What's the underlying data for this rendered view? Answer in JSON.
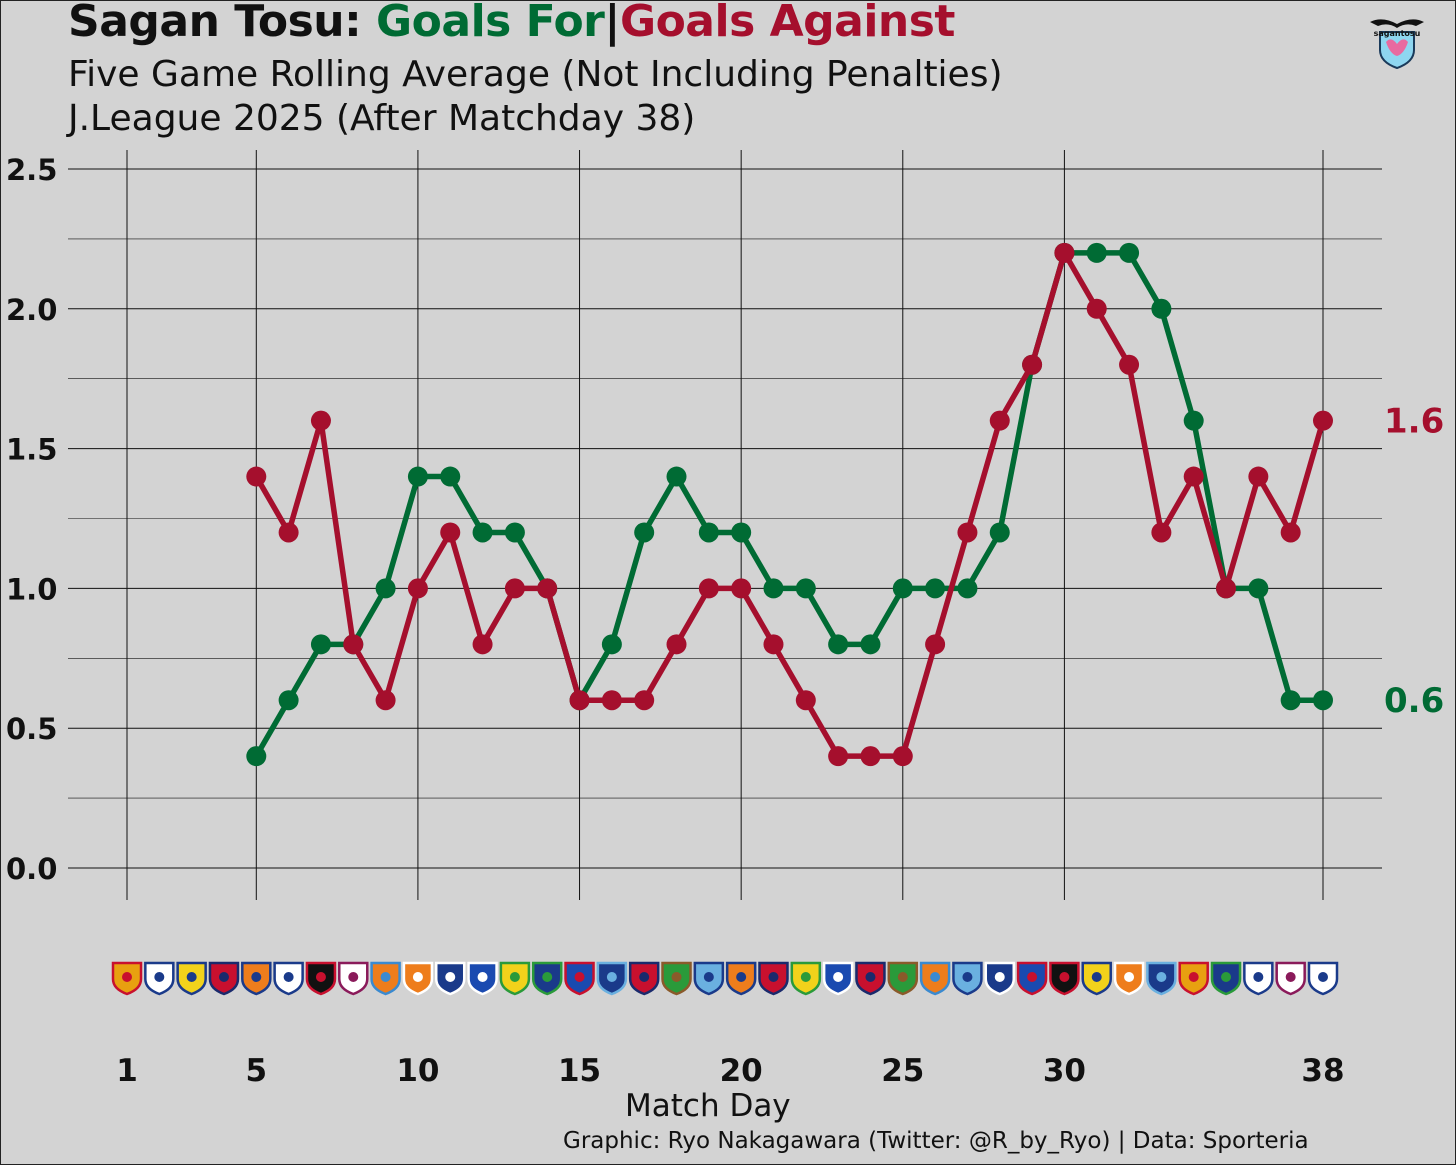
{
  "header": {
    "team": "Sagan Tosu:",
    "goals_for": "Goals For",
    "separator": "|",
    "goals_against": "Goals Against",
    "subtitle1": "Five Game Rolling Average (Not Including Penalties)",
    "subtitle2": "J.League 2025 (After Matchday 38)",
    "logo_text": "sagantosu"
  },
  "footer": {
    "xlabel": "Match Day",
    "caption": "Graphic: Ryo Nakagawara (Twitter: @R_by_Ryo) | Data: Sporteria"
  },
  "colors": {
    "goals_for": "#006b34",
    "goals_against": "#a50f2d",
    "background": "#d3d3d3",
    "grid": "#111111"
  },
  "chart_data": {
    "type": "line",
    "title": "Sagan Tosu: Goals For | Goals Against",
    "xlabel": "Match Day",
    "ylabel": "",
    "xlim": [
      1,
      38
    ],
    "ylim": [
      0,
      2.5
    ],
    "xticks": [
      1,
      5,
      10,
      15,
      20,
      25,
      30,
      38
    ],
    "yticks": [
      "0.0",
      "0.5",
      "1.0",
      "1.5",
      "2.0",
      "2.5"
    ],
    "grid": true,
    "legend": "title",
    "x": [
      5,
      6,
      7,
      8,
      9,
      10,
      11,
      12,
      13,
      14,
      15,
      16,
      17,
      18,
      19,
      20,
      21,
      22,
      23,
      24,
      25,
      26,
      27,
      28,
      29,
      30,
      31,
      32,
      33,
      34,
      35,
      36,
      37,
      38
    ],
    "series": [
      {
        "name": "Goals For",
        "color": "#006b34",
        "values": [
          0.4,
          0.6,
          0.8,
          0.8,
          1.0,
          1.4,
          1.4,
          1.2,
          1.2,
          1.0,
          0.6,
          0.8,
          1.2,
          1.4,
          1.2,
          1.2,
          1.0,
          1.0,
          0.8,
          0.8,
          1.0,
          1.0,
          1.0,
          1.2,
          1.8,
          2.2,
          2.2,
          2.2,
          2.0,
          1.6,
          1.0,
          1.0,
          0.6,
          0.6
        ],
        "end_label": "0.6"
      },
      {
        "name": "Goals Against",
        "color": "#a50f2d",
        "values": [
          1.4,
          1.2,
          1.6,
          0.8,
          0.6,
          1.0,
          1.2,
          0.8,
          1.0,
          1.0,
          0.6,
          0.6,
          0.6,
          0.8,
          1.0,
          1.0,
          0.8,
          0.6,
          0.4,
          0.4,
          0.4,
          0.8,
          1.2,
          1.6,
          1.8,
          2.2,
          2.0,
          1.8,
          1.2,
          1.4,
          1.0,
          1.4,
          1.2,
          1.6
        ],
        "end_label": "1.6"
      }
    ],
    "opponent_badges": [
      {
        "colors": [
          "#e8a010",
          "#c8102e"
        ]
      },
      {
        "colors": [
          "#ffffff",
          "#1a3a8a"
        ]
      },
      {
        "colors": [
          "#f2d21b",
          "#1a3a8a"
        ]
      },
      {
        "colors": [
          "#c8102e",
          "#1a2a6c"
        ]
      },
      {
        "colors": [
          "#ee7d1c",
          "#1a3a8a"
        ]
      },
      {
        "colors": [
          "#ffffff",
          "#1a3a8a"
        ]
      },
      {
        "colors": [
          "#111111",
          "#c8102e"
        ]
      },
      {
        "colors": [
          "#ffffff",
          "#8a1a5a"
        ]
      },
      {
        "colors": [
          "#ee7d1c",
          "#3a8ad0"
        ]
      },
      {
        "colors": [
          "#ee7d1c",
          "#ffffff"
        ]
      },
      {
        "colors": [
          "#1a3a8a",
          "#ffffff"
        ]
      },
      {
        "colors": [
          "#1a4ab0",
          "#ffffff"
        ]
      },
      {
        "colors": [
          "#f2d21b",
          "#2a9a3a"
        ]
      },
      {
        "colors": [
          "#1a3a8a",
          "#2a9a3a"
        ]
      },
      {
        "colors": [
          "#1a4ab0",
          "#c8102e"
        ]
      },
      {
        "colors": [
          "#1a3a8a",
          "#6ab0e0"
        ]
      },
      {
        "colors": [
          "#c8102e",
          "#1a2a6c"
        ]
      },
      {
        "colors": [
          "#2a9a3a",
          "#8a5a2a"
        ]
      },
      {
        "colors": [
          "#6ab0e0",
          "#1a3a8a"
        ]
      },
      {
        "colors": [
          "#ee7d1c",
          "#1a3a8a"
        ]
      },
      {
        "colors": [
          "#c8102e",
          "#1a2a6c"
        ]
      },
      {
        "colors": [
          "#f2d21b",
          "#2a9a3a"
        ]
      },
      {
        "colors": [
          "#1a4ab0",
          "#ffffff"
        ]
      },
      {
        "colors": [
          "#c8102e",
          "#1a2a6c"
        ]
      },
      {
        "colors": [
          "#2a9a3a",
          "#8a5a2a"
        ]
      },
      {
        "colors": [
          "#ee7d1c",
          "#3a8ad0"
        ]
      },
      {
        "colors": [
          "#6ab0e0",
          "#1a3a8a"
        ]
      },
      {
        "colors": [
          "#1a3a8a",
          "#ffffff"
        ]
      },
      {
        "colors": [
          "#1a4ab0",
          "#c8102e"
        ]
      },
      {
        "colors": [
          "#111111",
          "#c8102e"
        ]
      },
      {
        "colors": [
          "#f2d21b",
          "#1a3a8a"
        ]
      },
      {
        "colors": [
          "#ee7d1c",
          "#ffffff"
        ]
      },
      {
        "colors": [
          "#1a3a8a",
          "#6ab0e0"
        ]
      },
      {
        "colors": [
          "#e8a010",
          "#c8102e"
        ]
      },
      {
        "colors": [
          "#1a3a8a",
          "#2a9a3a"
        ]
      },
      {
        "colors": [
          "#ffffff",
          "#1a3a8a"
        ]
      },
      {
        "colors": [
          "#ffffff",
          "#8a1a5a"
        ]
      },
      {
        "colors": [
          "#ffffff",
          "#1a3a8a"
        ]
      }
    ]
  }
}
